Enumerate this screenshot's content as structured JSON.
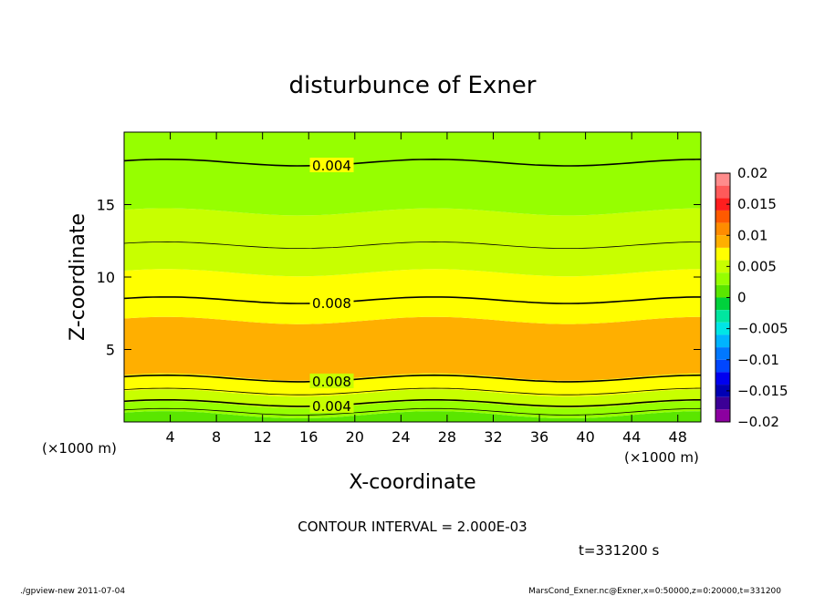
{
  "chart_data": {
    "type": "heatmap",
    "title": "disturbunce of Exner",
    "xlabel": "X-coordinate",
    "ylabel": "Z-coordinate",
    "x_unit": "(×1000 m)",
    "x_unit_bottom": "(×1000 m)",
    "xlim": [
      0,
      50
    ],
    "ylim": [
      0,
      20
    ],
    "xticks": [
      4,
      8,
      12,
      16,
      20,
      24,
      28,
      32,
      36,
      40,
      44,
      48
    ],
    "yticks": [
      5,
      10,
      15
    ],
    "colorbar": {
      "ticks": [
        "0.02",
        "0.015",
        "0.01",
        "0.005",
        "0",
        "−0.005",
        "−0.01",
        "−0.015",
        "−0.02"
      ],
      "levels": [
        {
          "from": 0.018,
          "to": 0.02,
          "color": "#ff8c8c"
        },
        {
          "from": 0.016,
          "to": 0.018,
          "color": "#ff5a5a"
        },
        {
          "from": 0.014,
          "to": 0.016,
          "color": "#ff1e1e"
        },
        {
          "from": 0.012,
          "to": 0.014,
          "color": "#ff5a00"
        },
        {
          "from": 0.01,
          "to": 0.012,
          "color": "#ff8c00"
        },
        {
          "from": 0.008,
          "to": 0.01,
          "color": "#ffaf00"
        },
        {
          "from": 0.006,
          "to": 0.008,
          "color": "#ffff00"
        },
        {
          "from": 0.004,
          "to": 0.006,
          "color": "#c8ff00"
        },
        {
          "from": 0.002,
          "to": 0.004,
          "color": "#96ff00"
        },
        {
          "from": 0.0,
          "to": 0.002,
          "color": "#5ae600"
        },
        {
          "from": -0.002,
          "to": 0.0,
          "color": "#00d23c"
        },
        {
          "from": -0.004,
          "to": -0.002,
          "color": "#00e6a0"
        },
        {
          "from": -0.006,
          "to": -0.004,
          "color": "#00e6e6"
        },
        {
          "from": -0.008,
          "to": -0.006,
          "color": "#00b4ff"
        },
        {
          "from": -0.01,
          "to": -0.008,
          "color": "#0078ff"
        },
        {
          "from": -0.012,
          "to": -0.01,
          "color": "#0046ff"
        },
        {
          "from": -0.014,
          "to": -0.012,
          "color": "#0000f0"
        },
        {
          "from": -0.016,
          "to": -0.014,
          "color": "#0000b4"
        },
        {
          "from": -0.018,
          "to": -0.016,
          "color": "#3c0096"
        },
        {
          "from": -0.02,
          "to": -0.018,
          "color": "#8c00a0"
        }
      ]
    },
    "field_bands": [
      {
        "z_from": 0.0,
        "z_to": 0.5,
        "value": 0.001
      },
      {
        "z_from": 0.5,
        "z_to": 1.2,
        "value": 0.003
      },
      {
        "z_from": 1.2,
        "z_to": 2.0,
        "value": 0.005
      },
      {
        "z_from": 2.0,
        "z_to": 3.1,
        "value": 0.007
      },
      {
        "z_from": 3.1,
        "z_to": 7.0,
        "value": 0.009
      },
      {
        "z_from": 7.0,
        "z_to": 8.4,
        "value": 0.007
      },
      {
        "z_from": 8.4,
        "z_to": 10.3,
        "value": 0.007
      },
      {
        "z_from": 10.3,
        "z_to": 12.2,
        "value": 0.005
      },
      {
        "z_from": 12.2,
        "z_to": 14.5,
        "value": 0.005
      },
      {
        "z_from": 14.5,
        "z_to": 20.0,
        "value": 0.003
      }
    ],
    "contours": [
      {
        "z": 0.7,
        "label": ""
      },
      {
        "z": 1.3,
        "label": "0.004"
      },
      {
        "z": 2.1,
        "label": ""
      },
      {
        "z": 3.0,
        "label": "0.008"
      },
      {
        "z": 8.4,
        "label": "0.008"
      },
      {
        "z": 12.2,
        "label": ""
      },
      {
        "z": 17.9,
        "label": "0.004"
      }
    ],
    "contour_interval_label": "CONTOUR INTERVAL = 2.000E-03",
    "time_label": "t=331200 s",
    "footer_left": "./gpview-new   2011-07-04",
    "footer_right": "MarsCond_Exner.nc@Exner,x=0:50000,z=0:20000,t=331200"
  }
}
